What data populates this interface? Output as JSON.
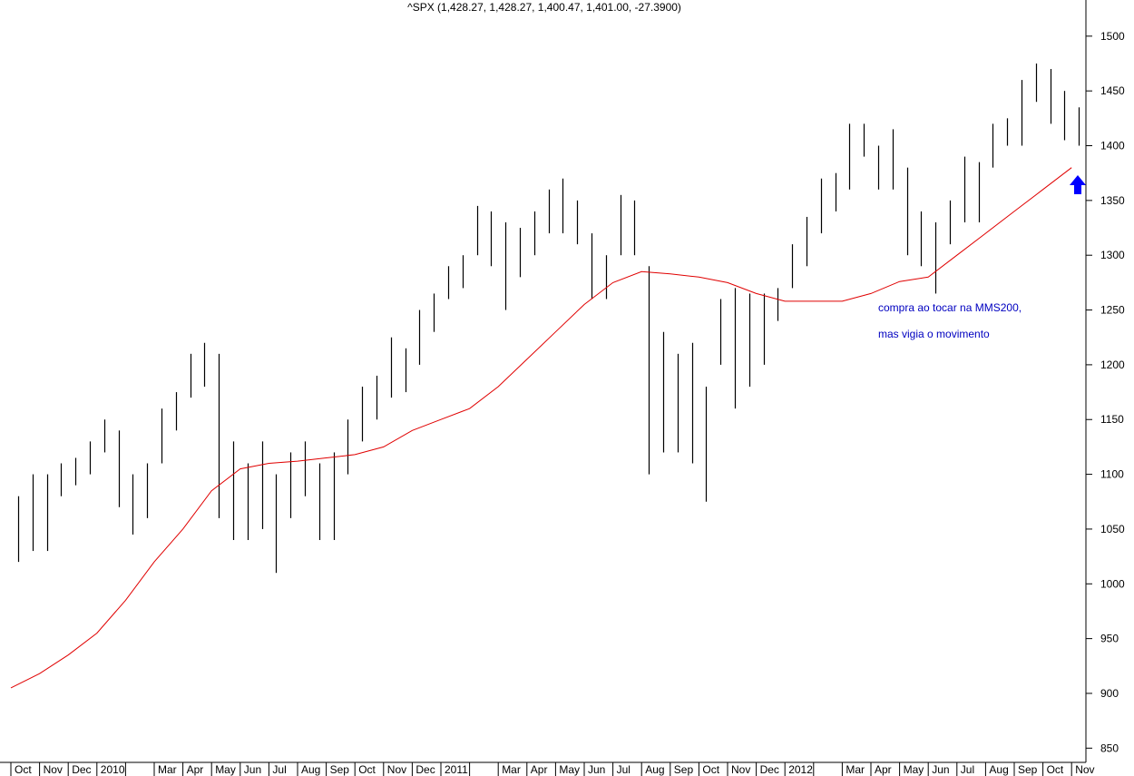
{
  "chart_data": {
    "type": "ohlc",
    "title": "^SPX (1,428.27, 1,428.27, 1,400.47, 1,401.00, -27.3900)",
    "annotations": [
      "compra ao tocar na MMS200,",
      "mas vigia o movimento"
    ],
    "months": [
      "Oct",
      "Nov",
      "Dec",
      "2010",
      null,
      "Mar",
      "Apr",
      "May",
      "Jun",
      "Jul",
      "Aug",
      "Sep",
      "Oct",
      "Nov",
      "Dec",
      "2011",
      null,
      "Mar",
      "Apr",
      "May",
      "Jun",
      "Jul",
      "Aug",
      "Sep",
      "Oct",
      "Nov",
      "Dec",
      "2012",
      null,
      "Mar",
      "Apr",
      "May",
      "Jun",
      "Jul",
      "Aug",
      "Sep",
      "Oct",
      "Nov"
    ],
    "x": [
      "2009-10",
      "2009-10",
      "2009-11",
      "2009-11",
      "2009-12",
      "2009-12",
      "2010-01",
      "2010-01",
      "2010-02",
      "2010-02",
      "2010-03",
      "2010-03",
      "2010-04",
      "2010-04",
      "2010-05",
      "2010-05",
      "2010-06",
      "2010-06",
      "2010-07",
      "2010-07",
      "2010-08",
      "2010-08",
      "2010-09",
      "2010-09",
      "2010-10",
      "2010-10",
      "2010-11",
      "2010-11",
      "2010-12",
      "2010-12",
      "2011-01",
      "2011-01",
      "2011-02",
      "2011-02",
      "2011-03",
      "2011-03",
      "2011-04",
      "2011-04",
      "2011-05",
      "2011-05",
      "2011-06",
      "2011-06",
      "2011-07",
      "2011-07",
      "2011-08",
      "2011-08",
      "2011-09",
      "2011-09",
      "2011-10",
      "2011-10",
      "2011-11",
      "2011-11",
      "2011-12",
      "2011-12",
      "2012-01",
      "2012-01",
      "2012-02",
      "2012-02",
      "2012-03",
      "2012-03",
      "2012-04",
      "2012-04",
      "2012-05",
      "2012-05",
      "2012-06",
      "2012-06",
      "2012-07",
      "2012-07",
      "2012-08",
      "2012-08",
      "2012-09",
      "2012-09",
      "2012-10",
      "2012-10",
      "2012-11"
    ],
    "high": [
      1080,
      1100,
      1100,
      1110,
      1115,
      1130,
      1150,
      1140,
      1100,
      1110,
      1160,
      1175,
      1210,
      1220,
      1210,
      1130,
      1110,
      1130,
      1100,
      1120,
      1130,
      1110,
      1120,
      1150,
      1180,
      1190,
      1225,
      1215,
      1250,
      1265,
      1290,
      1300,
      1345,
      1340,
      1330,
      1325,
      1340,
      1360,
      1370,
      1350,
      1320,
      1300,
      1355,
      1350,
      1290,
      1230,
      1210,
      1220,
      1180,
      1260,
      1270,
      1265,
      1265,
      1270,
      1310,
      1335,
      1370,
      1375,
      1420,
      1420,
      1400,
      1415,
      1380,
      1340,
      1330,
      1350,
      1390,
      1385,
      1420,
      1425,
      1460,
      1475,
      1470,
      1450,
      1435
    ],
    "low": [
      1020,
      1030,
      1030,
      1080,
      1090,
      1100,
      1120,
      1070,
      1045,
      1060,
      1110,
      1140,
      1170,
      1180,
      1060,
      1040,
      1040,
      1050,
      1010,
      1060,
      1080,
      1040,
      1040,
      1100,
      1130,
      1150,
      1170,
      1175,
      1200,
      1230,
      1260,
      1270,
      1300,
      1290,
      1250,
      1280,
      1300,
      1320,
      1320,
      1310,
      1260,
      1260,
      1300,
      1300,
      1100,
      1120,
      1120,
      1110,
      1075,
      1200,
      1160,
      1180,
      1200,
      1240,
      1270,
      1290,
      1320,
      1340,
      1360,
      1390,
      1360,
      1360,
      1300,
      1290,
      1265,
      1310,
      1330,
      1330,
      1380,
      1400,
      1400,
      1440,
      1420,
      1405,
      1400
    ],
    "color": "#000000",
    "moving_average": {
      "color": "#e00000",
      "x": [
        "2009-10",
        "2009-11",
        "2009-12",
        "2010-01",
        "2010-02",
        "2010-03",
        "2010-04",
        "2010-05",
        "2010-06",
        "2010-07",
        "2010-08",
        "2010-09",
        "2010-10",
        "2010-11",
        "2010-12",
        "2011-01",
        "2011-02",
        "2011-03",
        "2011-04",
        "2011-05",
        "2011-06",
        "2011-07",
        "2011-08",
        "2011-09",
        "2011-10",
        "2011-11",
        "2011-12",
        "2012-01",
        "2012-02",
        "2012-03",
        "2012-04",
        "2012-05",
        "2012-06",
        "2012-07",
        "2012-08",
        "2012-09",
        "2012-10",
        "2012-11"
      ],
      "values": [
        905,
        918,
        935,
        955,
        985,
        1020,
        1050,
        1085,
        1105,
        1110,
        1112,
        1115,
        1118,
        1125,
        1140,
        1150,
        1160,
        1180,
        1205,
        1230,
        1255,
        1275,
        1285,
        1283,
        1280,
        1275,
        1265,
        1258,
        1258,
        1258,
        1265,
        1276,
        1280,
        1300,
        1320,
        1340,
        1360,
        1380
      ]
    },
    "ylim": [
      837,
      1533
    ],
    "yticks": [
      850,
      900,
      950,
      1000,
      1050,
      1100,
      1150,
      1200,
      1250,
      1300,
      1350,
      1400,
      1450,
      1500
    ]
  }
}
